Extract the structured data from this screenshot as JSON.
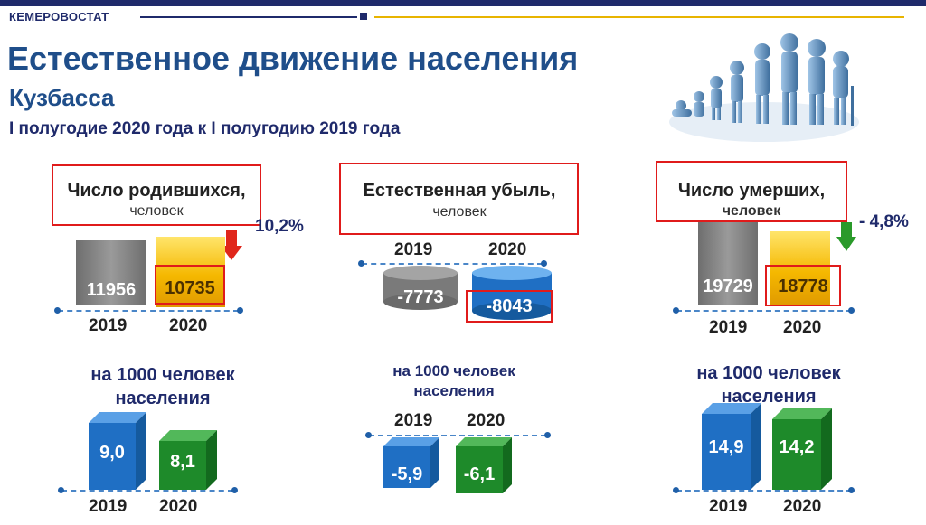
{
  "header": {
    "brand": "КЕМЕРОВОСТАТ",
    "title": "Естественное движение населения",
    "subtitle": "Кузбасса",
    "period": "I полугодие 2020 года к I полугодию 2019 года"
  },
  "births": {
    "title": "Число родившихся,",
    "unit": "человек",
    "change": "10,2%",
    "values": [
      "11956",
      "10735"
    ],
    "years": [
      "2019",
      "2020"
    ],
    "per1000_label_line1": "на 1000 человек",
    "per1000_label_line2": "населения",
    "per1000_values": [
      "9,0",
      "8,1"
    ],
    "per1000_years": [
      "2019",
      "2020"
    ]
  },
  "natural_decrease": {
    "title": "Естественная убыль,",
    "unit": "человек",
    "years": [
      "2019",
      "2020"
    ],
    "values": [
      "-7773",
      "-8043"
    ],
    "per1000_label_line1": "на 1000 человек",
    "per1000_label_line2": "населения",
    "per1000_years": [
      "2019",
      "2020"
    ],
    "per1000_values": [
      "-5,9",
      "-6,1"
    ]
  },
  "deaths": {
    "title": "Число умерших,",
    "unit": "человек",
    "change": "- 4,8%",
    "values": [
      "19729",
      "18778"
    ],
    "years": [
      "2019",
      "2020"
    ],
    "per1000_label_line1": "на 1000 человек",
    "per1000_label_line2": "населения",
    "per1000_values": [
      "14,9",
      "14,2"
    ],
    "per1000_years": [
      "2019",
      "2020"
    ]
  },
  "colors": {
    "navy": "#1f2a6b",
    "title_blue": "#1f4e8a",
    "highlight_red": "#e01b1b",
    "gold": "#f5b800",
    "gray": "#8a8a8a",
    "cube_blue": "#1f6fc4",
    "cube_green": "#1e8a2a",
    "arrow_red": "#e0261b",
    "arrow_green": "#2a9a2a"
  },
  "icons": {
    "evolution": "human-growth-silhouettes",
    "down_arrow_red": "arrow-down-red-icon",
    "down_arrow_green": "arrow-down-green-icon"
  }
}
